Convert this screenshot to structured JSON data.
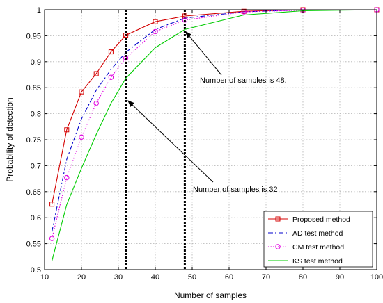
{
  "chart_data": {
    "type": "line",
    "title": "",
    "xlabel": "Number of samples",
    "ylabel": "Probability of detection",
    "xlim": [
      10,
      100
    ],
    "ylim": [
      0.5,
      1
    ],
    "xticks": [
      10,
      20,
      30,
      40,
      50,
      60,
      70,
      80,
      90,
      100
    ],
    "yticks": [
      0.5,
      0.55,
      0.6,
      0.65,
      0.7,
      0.75,
      0.8,
      0.85,
      0.9,
      0.95,
      1
    ],
    "xtick_labels": [
      "10",
      "20",
      "30",
      "40",
      "50",
      "60",
      "70",
      "80",
      "90",
      "100"
    ],
    "ytick_labels": [
      "0.5",
      "0.55",
      "0.6",
      "0.65",
      "0.7",
      "0.75",
      "0.8",
      "0.85",
      "0.9",
      "0.95",
      "1"
    ],
    "grid": true,
    "legend_position": "bottom-right",
    "series": [
      {
        "name": "Proposed method",
        "color": "#d40000",
        "dash": "solid",
        "marker": "square",
        "x": [
          12,
          16,
          20,
          24,
          28,
          32,
          40,
          48,
          64,
          80,
          100
        ],
        "y": [
          0.626,
          0.769,
          0.842,
          0.877,
          0.919,
          0.951,
          0.977,
          0.988,
          0.997,
          1.0,
          1.0
        ]
      },
      {
        "name": "AD test method",
        "color": "#0000cc",
        "dash": "dashdot",
        "marker": "none",
        "x": [
          12,
          16,
          20,
          24,
          28,
          32,
          40,
          48,
          64,
          80,
          100
        ],
        "y": [
          0.573,
          0.712,
          0.79,
          0.845,
          0.885,
          0.918,
          0.962,
          0.984,
          0.996,
          1.0,
          1.0
        ]
      },
      {
        "name": "CM test method",
        "color": "#e000e0",
        "dash": "dotted",
        "marker": "circle",
        "x": [
          12,
          16,
          20,
          24,
          28,
          32,
          40,
          48,
          64,
          80,
          100
        ],
        "y": [
          0.56,
          0.677,
          0.755,
          0.82,
          0.87,
          0.907,
          0.958,
          0.98,
          0.996,
          0.999,
          1.0
        ]
      },
      {
        "name": "KS test method",
        "color": "#00cc00",
        "dash": "solid",
        "marker": "none",
        "x": [
          12,
          16,
          20,
          24,
          28,
          32,
          40,
          48,
          64,
          80,
          100
        ],
        "y": [
          0.517,
          0.625,
          0.695,
          0.76,
          0.82,
          0.868,
          0.927,
          0.962,
          0.99,
          0.998,
          1.0
        ]
      }
    ],
    "reference_lines": [
      {
        "x": 32,
        "style": "dotted",
        "color": "#000000"
      },
      {
        "x": 48,
        "style": "dotted",
        "color": "#000000"
      }
    ],
    "annotations": [
      {
        "text": "Number of samples is 48.",
        "arrow_to": [
          48.2,
          0.958
        ]
      },
      {
        "text": "Number of samples is 32",
        "arrow_to": [
          32.6,
          0.825
        ]
      }
    ]
  }
}
